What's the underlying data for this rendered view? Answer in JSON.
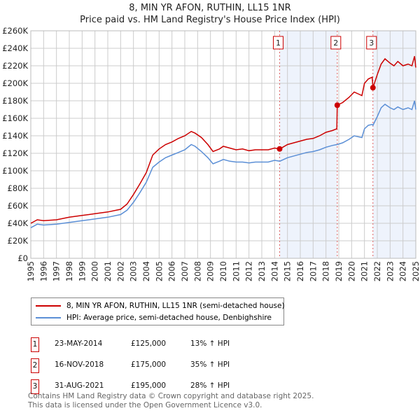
{
  "chart_data": {
    "type": "line",
    "title": "8, MIN YR AFON, RUTHIN, LL15 1NR",
    "subtitle": "Price paid vs. HM Land Registry's House Price Index (HPI)",
    "xlim": [
      1995,
      2025
    ],
    "ylim": [
      0,
      260000
    ],
    "x_ticks": [
      "1995",
      "1996",
      "1997",
      "1998",
      "1999",
      "2000",
      "2001",
      "2002",
      "2003",
      "2004",
      "2005",
      "2006",
      "2007",
      "2008",
      "2009",
      "2010",
      "2011",
      "2012",
      "2013",
      "2014",
      "2015",
      "2016",
      "2017",
      "2018",
      "2019",
      "2020",
      "2021",
      "2022",
      "2023",
      "2024",
      "2025"
    ],
    "y_ticks": [
      "£0",
      "£20K",
      "£40K",
      "£60K",
      "£80K",
      "£100K",
      "£120K",
      "£140K",
      "£160K",
      "£180K",
      "£200K",
      "£220K",
      "£240K",
      "£260K"
    ],
    "grid": true,
    "series": [
      {
        "name": "8, MIN YR AFON, RUTHIN, LL15 1NR (semi-detached house)",
        "color": "#cc0000",
        "x": [
          1995,
          1995.5,
          1996,
          1997,
          1998,
          1999,
          2000,
          2001,
          2002,
          2002.5,
          2003,
          2003.5,
          2004,
          2004.5,
          2005,
          2005.5,
          2006,
          2006.5,
          2007,
          2007.5,
          2007.8,
          2008.3,
          2008.8,
          2009.2,
          2009.7,
          2010,
          2010.5,
          2011,
          2011.5,
          2012,
          2012.5,
          2013,
          2013.5,
          2014,
          2014.4,
          2015,
          2015.5,
          2016,
          2016.5,
          2017,
          2017.5,
          2018,
          2018.5,
          2018.85,
          2018.88,
          2019.3,
          2019.8,
          2020.2,
          2020.5,
          2020.8,
          2021,
          2021.3,
          2021.6,
          2021.66,
          2022,
          2022.3,
          2022.6,
          2023,
          2023.3,
          2023.6,
          2024,
          2024.4,
          2024.7,
          2024.9,
          2025
        ],
        "y": [
          40000,
          44000,
          43000,
          44000,
          47000,
          49000,
          51000,
          53000,
          56000,
          62000,
          73000,
          85000,
          98000,
          118000,
          125000,
          130000,
          133000,
          137000,
          140000,
          145000,
          143000,
          138000,
          130000,
          122000,
          125000,
          128000,
          126000,
          124000,
          125000,
          123000,
          124000,
          124000,
          124000,
          126000,
          125000,
          130000,
          132000,
          134000,
          136000,
          137000,
          140000,
          144000,
          146000,
          148000,
          175000,
          178000,
          184000,
          190000,
          188000,
          186000,
          200000,
          205000,
          207000,
          195000,
          210000,
          222000,
          228000,
          223000,
          220000,
          225000,
          220000,
          222000,
          220000,
          231000,
          218000
        ]
      },
      {
        "name": "HPI: Average price, semi-detached house, Denbighshire",
        "color": "#5b8fd6",
        "x": [
          1995,
          1995.5,
          1996,
          1997,
          1998,
          1999,
          2000,
          2001,
          2002,
          2002.5,
          2003,
          2003.5,
          2004,
          2004.5,
          2005,
          2005.5,
          2006,
          2006.5,
          2007,
          2007.5,
          2007.8,
          2008.3,
          2008.8,
          2009.2,
          2009.7,
          2010,
          2010.5,
          2011,
          2011.5,
          2012,
          2012.5,
          2013,
          2013.5,
          2014,
          2014.4,
          2015,
          2015.5,
          2016,
          2016.5,
          2017,
          2017.5,
          2018,
          2018.5,
          2018.85,
          2018.88,
          2019.3,
          2019.8,
          2020.2,
          2020.5,
          2020.8,
          2021,
          2021.3,
          2021.6,
          2021.66,
          2022,
          2022.3,
          2022.6,
          2023,
          2023.3,
          2023.6,
          2024,
          2024.4,
          2024.7,
          2024.9,
          2025
        ],
        "y": [
          35000,
          39000,
          38000,
          39000,
          41000,
          43000,
          45000,
          47000,
          50000,
          55000,
          64000,
          75000,
          87000,
          104000,
          110000,
          115000,
          118000,
          121000,
          124000,
          130000,
          128000,
          122000,
          115000,
          108000,
          111000,
          113000,
          111000,
          110000,
          110000,
          109000,
          110000,
          110000,
          110000,
          112000,
          111000,
          115000,
          117000,
          119000,
          121000,
          122000,
          124000,
          127000,
          129000,
          130000,
          130000,
          132000,
          136000,
          140000,
          139000,
          138000,
          148000,
          152000,
          153000,
          152000,
          162000,
          172000,
          176000,
          172000,
          170000,
          173000,
          170000,
          172000,
          170000,
          180000,
          170000
        ]
      }
    ],
    "sales": [
      {
        "label": "1",
        "x": 2014.39,
        "y": 125000,
        "date": "23-MAY-2014",
        "price": "£125,000",
        "hpi": "13% ↑ HPI"
      },
      {
        "label": "2",
        "x": 2018.88,
        "y": 175000,
        "date": "16-NOV-2018",
        "price": "£175,000",
        "hpi": "35% ↑ HPI"
      },
      {
        "label": "3",
        "x": 2021.66,
        "y": 195000,
        "date": "31-AUG-2021",
        "price": "£195,000",
        "hpi": "28% ↑ HPI"
      }
    ],
    "legend_position": "below"
  },
  "footer": {
    "line1": "Contains HM Land Registry data © Crown copyright and database right 2025.",
    "line2": "This data is licensed under the Open Government Licence v3.0."
  }
}
